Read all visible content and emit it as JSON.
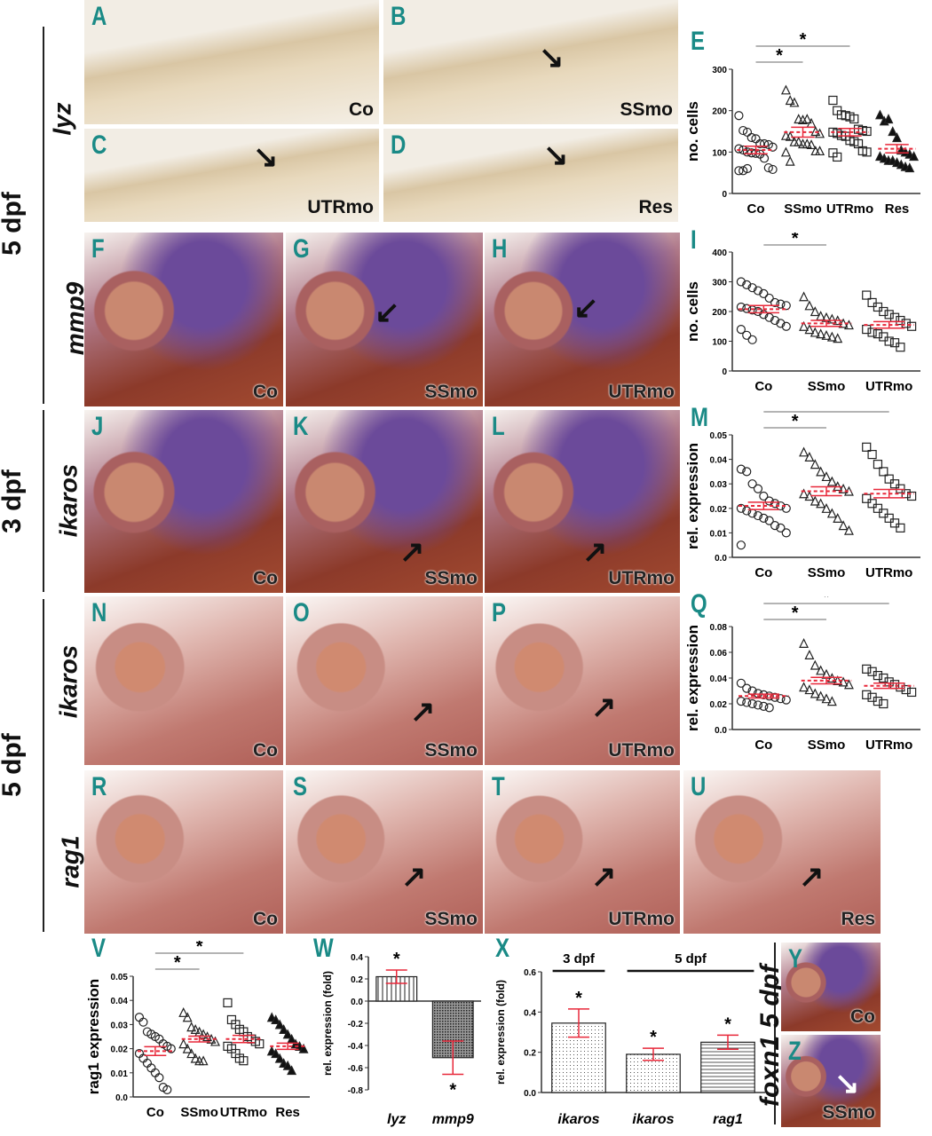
{
  "stages": {
    "top": "5 dpf",
    "mid": "3 dpf",
    "bottom": "5 dpf",
    "foxn1": "foxn1 5 dpf"
  },
  "genes": {
    "row1": "lyz",
    "row2": "mmp9",
    "row3": "ikaros",
    "row4": "ikaros",
    "row5": "rag1"
  },
  "photos": {
    "A": {
      "letter": "A",
      "cond": "Co"
    },
    "B": {
      "letter": "B",
      "cond": "SSmo"
    },
    "C": {
      "letter": "C",
      "cond": "UTRmo"
    },
    "D": {
      "letter": "D",
      "cond": "Res"
    },
    "F": {
      "letter": "F",
      "cond": "Co"
    },
    "G": {
      "letter": "G",
      "cond": "SSmo"
    },
    "H": {
      "letter": "H",
      "cond": "UTRmo"
    },
    "J": {
      "letter": "J",
      "cond": "Co"
    },
    "K": {
      "letter": "K",
      "cond": "SSmo"
    },
    "L": {
      "letter": "L",
      "cond": "UTRmo"
    },
    "N": {
      "letter": "N",
      "cond": "Co"
    },
    "O": {
      "letter": "O",
      "cond": "SSmo"
    },
    "P": {
      "letter": "P",
      "cond": "UTRmo"
    },
    "R": {
      "letter": "R",
      "cond": "Co"
    },
    "S": {
      "letter": "S",
      "cond": "SSmo"
    },
    "T": {
      "letter": "T",
      "cond": "UTRmo"
    },
    "U": {
      "letter": "U",
      "cond": "Res"
    },
    "Y": {
      "letter": "Y",
      "cond": "Co"
    },
    "Z": {
      "letter": "Z",
      "cond": "SSmo"
    }
  },
  "colors": {
    "panel_letter": "#1a8a86",
    "mean": "#e8283a"
  },
  "chart_data": [
    {
      "panel": "E",
      "type": "scatter",
      "ylabel": "no. cells",
      "ylim": [
        0,
        300
      ],
      "yticks": [
        0,
        100,
        200,
        300
      ],
      "categories": [
        "Co",
        "SSmo",
        "UTRmo",
        "Res"
      ],
      "markers": [
        "circle",
        "triangle",
        "square",
        "triangle-filled"
      ],
      "means": [
        105,
        148,
        148,
        108
      ],
      "sem": [
        9,
        12,
        9,
        10
      ],
      "significance": [
        [
          "Co",
          "SSmo",
          "*"
        ],
        [
          "Co",
          "UTRmo",
          "*"
        ]
      ],
      "values": [
        [
          188,
          152,
          148,
          135,
          132,
          120,
          120,
          118,
          112,
          108,
          105,
          100,
          98,
          97,
          95,
          85,
          62,
          58,
          55,
          55,
          60
        ],
        [
          250,
          225,
          220,
          180,
          178,
          180,
          170,
          150,
          145,
          140,
          138,
          125,
          125,
          120,
          120,
          118,
          103,
          103,
          100,
          78
        ],
        [
          225,
          200,
          190,
          188,
          185,
          180,
          155,
          152,
          150,
          148,
          145,
          140,
          138,
          128,
          125,
          120,
          103,
          100,
          98,
          88
        ],
        [
          190,
          175,
          180,
          150,
          135,
          105,
          100,
          95,
          90,
          90,
          85,
          80,
          80,
          75,
          70,
          65,
          62
        ]
      ]
    },
    {
      "panel": "I",
      "type": "scatter",
      "ylabel": "no. cells",
      "ylim": [
        0,
        400
      ],
      "yticks": [
        0,
        100,
        200,
        300,
        400
      ],
      "categories": [
        "Co",
        "SSmo",
        "UTRmo"
      ],
      "markers": [
        "circle",
        "triangle",
        "square"
      ],
      "means": [
        208,
        160,
        155
      ],
      "sem": [
        12,
        10,
        11
      ],
      "significance": [
        [
          "Co",
          "SSmo",
          "*"
        ],
        [
          "Co",
          "UTRmo",
          "*"
        ]
      ],
      "values": [
        [
          300,
          290,
          280,
          270,
          260,
          245,
          230,
          225,
          220,
          215,
          210,
          205,
          200,
          190,
          180,
          170,
          160,
          150,
          140,
          120,
          105
        ],
        [
          250,
          220,
          200,
          185,
          180,
          175,
          170,
          160,
          155,
          150,
          140,
          130,
          125,
          120,
          115,
          110
        ],
        [
          255,
          230,
          215,
          200,
          190,
          180,
          170,
          160,
          150,
          140,
          130,
          125,
          115,
          100,
          95,
          80
        ]
      ]
    },
    {
      "panel": "M",
      "type": "scatter",
      "ylabel": "rel. expression",
      "ylim": [
        0,
        0.05
      ],
      "yticks": [
        0,
        0.01,
        0.02,
        0.03,
        0.04,
        0.05
      ],
      "categories": [
        "Co",
        "SSmo",
        "UTRmo"
      ],
      "markers": [
        "circle",
        "triangle",
        "square"
      ],
      "means": [
        0.021,
        0.027,
        0.026
      ],
      "sem": [
        0.0015,
        0.0018,
        0.0017
      ],
      "significance": [
        [
          "Co",
          "SSmo",
          "*"
        ],
        [
          "Co",
          "UTRmo",
          "*"
        ]
      ],
      "values": [
        [
          0.036,
          0.035,
          0.03,
          0.028,
          0.025,
          0.023,
          0.022,
          0.021,
          0.02,
          0.02,
          0.019,
          0.018,
          0.017,
          0.016,
          0.015,
          0.013,
          0.012,
          0.01,
          0.005
        ],
        [
          0.043,
          0.041,
          0.038,
          0.035,
          0.033,
          0.031,
          0.029,
          0.028,
          0.027,
          0.026,
          0.025,
          0.023,
          0.022,
          0.02,
          0.018,
          0.016,
          0.013,
          0.011
        ],
        [
          0.045,
          0.042,
          0.038,
          0.035,
          0.032,
          0.03,
          0.028,
          0.026,
          0.025,
          0.024,
          0.022,
          0.02,
          0.018,
          0.016,
          0.014,
          0.012
        ]
      ]
    },
    {
      "panel": "Q",
      "type": "scatter",
      "ylabel": "rel. expression",
      "ylim": [
        0,
        0.08
      ],
      "yticks": [
        0,
        0.02,
        0.04,
        0.06,
        0.08
      ],
      "categories": [
        "Co",
        "SSmo",
        "UTRmo"
      ],
      "markers": [
        "circle",
        "triangle",
        "square"
      ],
      "means": [
        0.026,
        0.038,
        0.034
      ],
      "sem": [
        0.0015,
        0.0025,
        0.002
      ],
      "significance": [
        [
          "Co",
          "SSmo",
          "*"
        ],
        [
          "Co",
          "UTRmo",
          "*"
        ]
      ],
      "values": [
        [
          0.036,
          0.032,
          0.03,
          0.028,
          0.027,
          0.026,
          0.025,
          0.024,
          0.023,
          0.022,
          0.021,
          0.02,
          0.019,
          0.018,
          0.017
        ],
        [
          0.067,
          0.058,
          0.05,
          0.046,
          0.043,
          0.04,
          0.038,
          0.037,
          0.035,
          0.033,
          0.031,
          0.028,
          0.026,
          0.024,
          0.022
        ],
        [
          0.047,
          0.045,
          0.042,
          0.04,
          0.037,
          0.035,
          0.033,
          0.031,
          0.029,
          0.027,
          0.025,
          0.022,
          0.02
        ]
      ]
    },
    {
      "panel": "V",
      "type": "scatter",
      "ylabel": "rag1 expression",
      "ylim": [
        0,
        0.05
      ],
      "yticks": [
        0,
        0.01,
        0.02,
        0.03,
        0.04,
        0.05
      ],
      "categories": [
        "Co",
        "SSmo",
        "UTRmo",
        "Res"
      ],
      "markers": [
        "circle",
        "triangle",
        "square",
        "triangle-filled"
      ],
      "means": [
        0.019,
        0.024,
        0.024,
        0.021
      ],
      "sem": [
        0.0018,
        0.0012,
        0.0015,
        0.0013
      ],
      "significance": [
        [
          "Co",
          "SSmo",
          "*"
        ],
        [
          "Co",
          "UTRmo",
          "*"
        ]
      ],
      "values": [
        [
          0.033,
          0.031,
          0.027,
          0.026,
          0.025,
          0.024,
          0.022,
          0.021,
          0.02,
          0.018,
          0.016,
          0.014,
          0.012,
          0.01,
          0.008,
          0.004,
          0.003
        ],
        [
          0.035,
          0.033,
          0.029,
          0.028,
          0.027,
          0.026,
          0.025,
          0.024,
          0.023,
          0.022,
          0.02,
          0.018,
          0.016,
          0.015,
          0.015
        ],
        [
          0.039,
          0.032,
          0.03,
          0.028,
          0.027,
          0.025,
          0.024,
          0.023,
          0.022,
          0.021,
          0.02,
          0.018,
          0.016,
          0.015
        ],
        [
          0.033,
          0.032,
          0.03,
          0.028,
          0.026,
          0.024,
          0.022,
          0.021,
          0.02,
          0.019,
          0.018,
          0.016,
          0.014,
          0.013,
          0.011
        ]
      ]
    },
    {
      "panel": "W",
      "type": "bar",
      "ylabel": "rel. expression (fold)",
      "ylim": [
        -0.8,
        0.4
      ],
      "yticks": [
        -0.8,
        -0.6,
        -0.4,
        -0.2,
        0.0,
        0.2,
        0.4
      ],
      "categories": [
        "lyz",
        "mmp9"
      ],
      "values": [
        0.22,
        -0.51
      ],
      "errors": [
        0.06,
        0.15
      ],
      "significance": [
        "*",
        "*"
      ]
    },
    {
      "panel": "X",
      "type": "bar",
      "ylabel": "rel. expression (fold)",
      "ylim": [
        0,
        0.6
      ],
      "yticks": [
        0.0,
        0.2,
        0.4,
        0.6
      ],
      "categories": [
        "ikaros",
        "ikaros",
        "rag1"
      ],
      "values": [
        0.345,
        0.19,
        0.25
      ],
      "errors": [
        0.07,
        0.03,
        0.035
      ],
      "significance": [
        "*",
        "*",
        "*"
      ],
      "groups": [
        {
          "label": "3 dpf",
          "span": [
            0,
            0
          ]
        },
        {
          "label": "5 dpf",
          "span": [
            1,
            2
          ]
        }
      ]
    }
  ]
}
